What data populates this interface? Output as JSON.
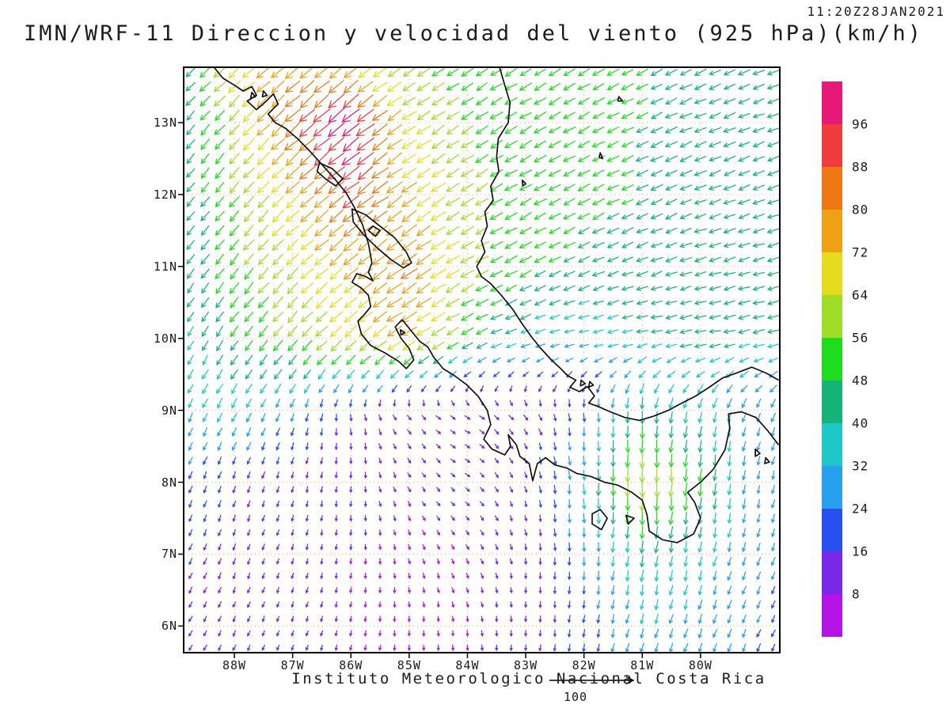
{
  "chart_data": {
    "type": "heatmap",
    "subtype": "wind_vector_field",
    "title": "IMN/WRF-11 Direccion y velocidad del viento (925 hPa)(km/h)",
    "timestamp": "11:20Z28JAN2021",
    "caption": "Instituto Meteorologico Nacional Costa Rica",
    "units": "km/h",
    "pressure_level": "925 hPa",
    "reference_vector": {
      "label": "100"
    },
    "x_axis": {
      "tick_labels": [
        "88W",
        "87W",
        "86W",
        "85W",
        "84W",
        "83W",
        "82W",
        "81W",
        "80W"
      ],
      "tick_lon_w": [
        88,
        87,
        86,
        85,
        84,
        83,
        82,
        81,
        80
      ],
      "range_lon_w": [
        88.87,
        78.64
      ]
    },
    "y_axis": {
      "tick_labels": [
        "13N",
        "12N",
        "11N",
        "10N",
        "9N",
        "8N",
        "7N",
        "6N"
      ],
      "tick_lat_n": [
        13,
        12,
        11,
        10,
        9,
        8,
        7,
        6
      ],
      "range_lat_n": [
        5.63,
        13.77
      ]
    },
    "colorbar": {
      "position": "right",
      "tick_labels": [
        "96",
        "88",
        "80",
        "72",
        "64",
        "56",
        "48",
        "40",
        "32",
        "24",
        "16",
        "8"
      ],
      "thresholds": [
        96,
        88,
        80,
        72,
        64,
        56,
        48,
        40,
        32,
        24,
        16,
        8
      ],
      "colors_top_to_bottom": [
        "#e61878",
        "#f03c3c",
        "#f07814",
        "#f0a014",
        "#e6dc1e",
        "#a0dc28",
        "#1edc1e",
        "#14b478",
        "#1ec8c8",
        "#28a0f0",
        "#2850f0",
        "#7828e6",
        "#b414e6"
      ]
    },
    "grid_lines": {
      "visible": true,
      "style": "dotted"
    },
    "wind_grid": {
      "note": "coarse sample of depicted wind field; speeds km/h, direction = compass heading the arrows point toward",
      "lat_n": [
        14,
        13,
        12,
        11,
        10,
        9,
        8,
        7,
        6,
        5
      ],
      "lon_w": [
        89,
        88,
        87,
        86,
        85,
        84,
        83,
        82,
        81,
        80,
        79,
        78
      ],
      "speed_kmh": [
        [
          40,
          72,
          76,
          60,
          54,
          52,
          50,
          48,
          48,
          46,
          44,
          44
        ],
        [
          40,
          60,
          88,
          104,
          66,
          56,
          52,
          50,
          48,
          48,
          44,
          44
        ],
        [
          40,
          56,
          72,
          90,
          74,
          58,
          52,
          50,
          48,
          46,
          44,
          42
        ],
        [
          40,
          54,
          64,
          74,
          82,
          60,
          50,
          46,
          44,
          44,
          42,
          40
        ],
        [
          36,
          48,
          58,
          66,
          74,
          52,
          36,
          34,
          40,
          44,
          42,
          40
        ],
        [
          32,
          36,
          26,
          16,
          12,
          12,
          14,
          22,
          44,
          36,
          30,
          28
        ],
        [
          22,
          16,
          12,
          10,
          8,
          9,
          12,
          36,
          66,
          50,
          26,
          24
        ],
        [
          18,
          13,
          10,
          8,
          8,
          8,
          10,
          26,
          42,
          36,
          26,
          22
        ],
        [
          14,
          11,
          9,
          8,
          8,
          8,
          9,
          20,
          32,
          30,
          24,
          20
        ],
        [
          12,
          10,
          8,
          8,
          8,
          8,
          9,
          18,
          28,
          26,
          22,
          18
        ]
      ],
      "direction_toward_deg": [
        [
          222,
          226,
          230,
          233,
          236,
          238,
          240,
          242,
          244,
          246,
          248,
          250
        ],
        [
          220,
          224,
          228,
          232,
          236,
          238,
          240,
          242,
          244,
          246,
          248,
          250
        ],
        [
          218,
          222,
          227,
          232,
          236,
          239,
          241,
          243,
          245,
          248,
          250,
          252
        ],
        [
          214,
          219,
          225,
          231,
          236,
          240,
          243,
          246,
          249,
          252,
          255,
          256
        ],
        [
          210,
          215,
          222,
          230,
          237,
          243,
          250,
          260,
          262,
          260,
          258,
          256
        ],
        [
          205,
          208,
          200,
          175,
          140,
          120,
          140,
          175,
          182,
          195,
          200,
          205
        ],
        [
          202,
          200,
          195,
          180,
          150,
          130,
          160,
          178,
          180,
          185,
          190,
          195
        ],
        [
          205,
          200,
          195,
          185,
          165,
          150,
          170,
          182,
          188,
          192,
          198,
          202
        ],
        [
          210,
          205,
          200,
          190,
          180,
          172,
          180,
          188,
          195,
          200,
          205,
          208
        ],
        [
          212,
          208,
          202,
          195,
          185,
          178,
          184,
          192,
          200,
          205,
          208,
          210
        ]
      ]
    }
  }
}
